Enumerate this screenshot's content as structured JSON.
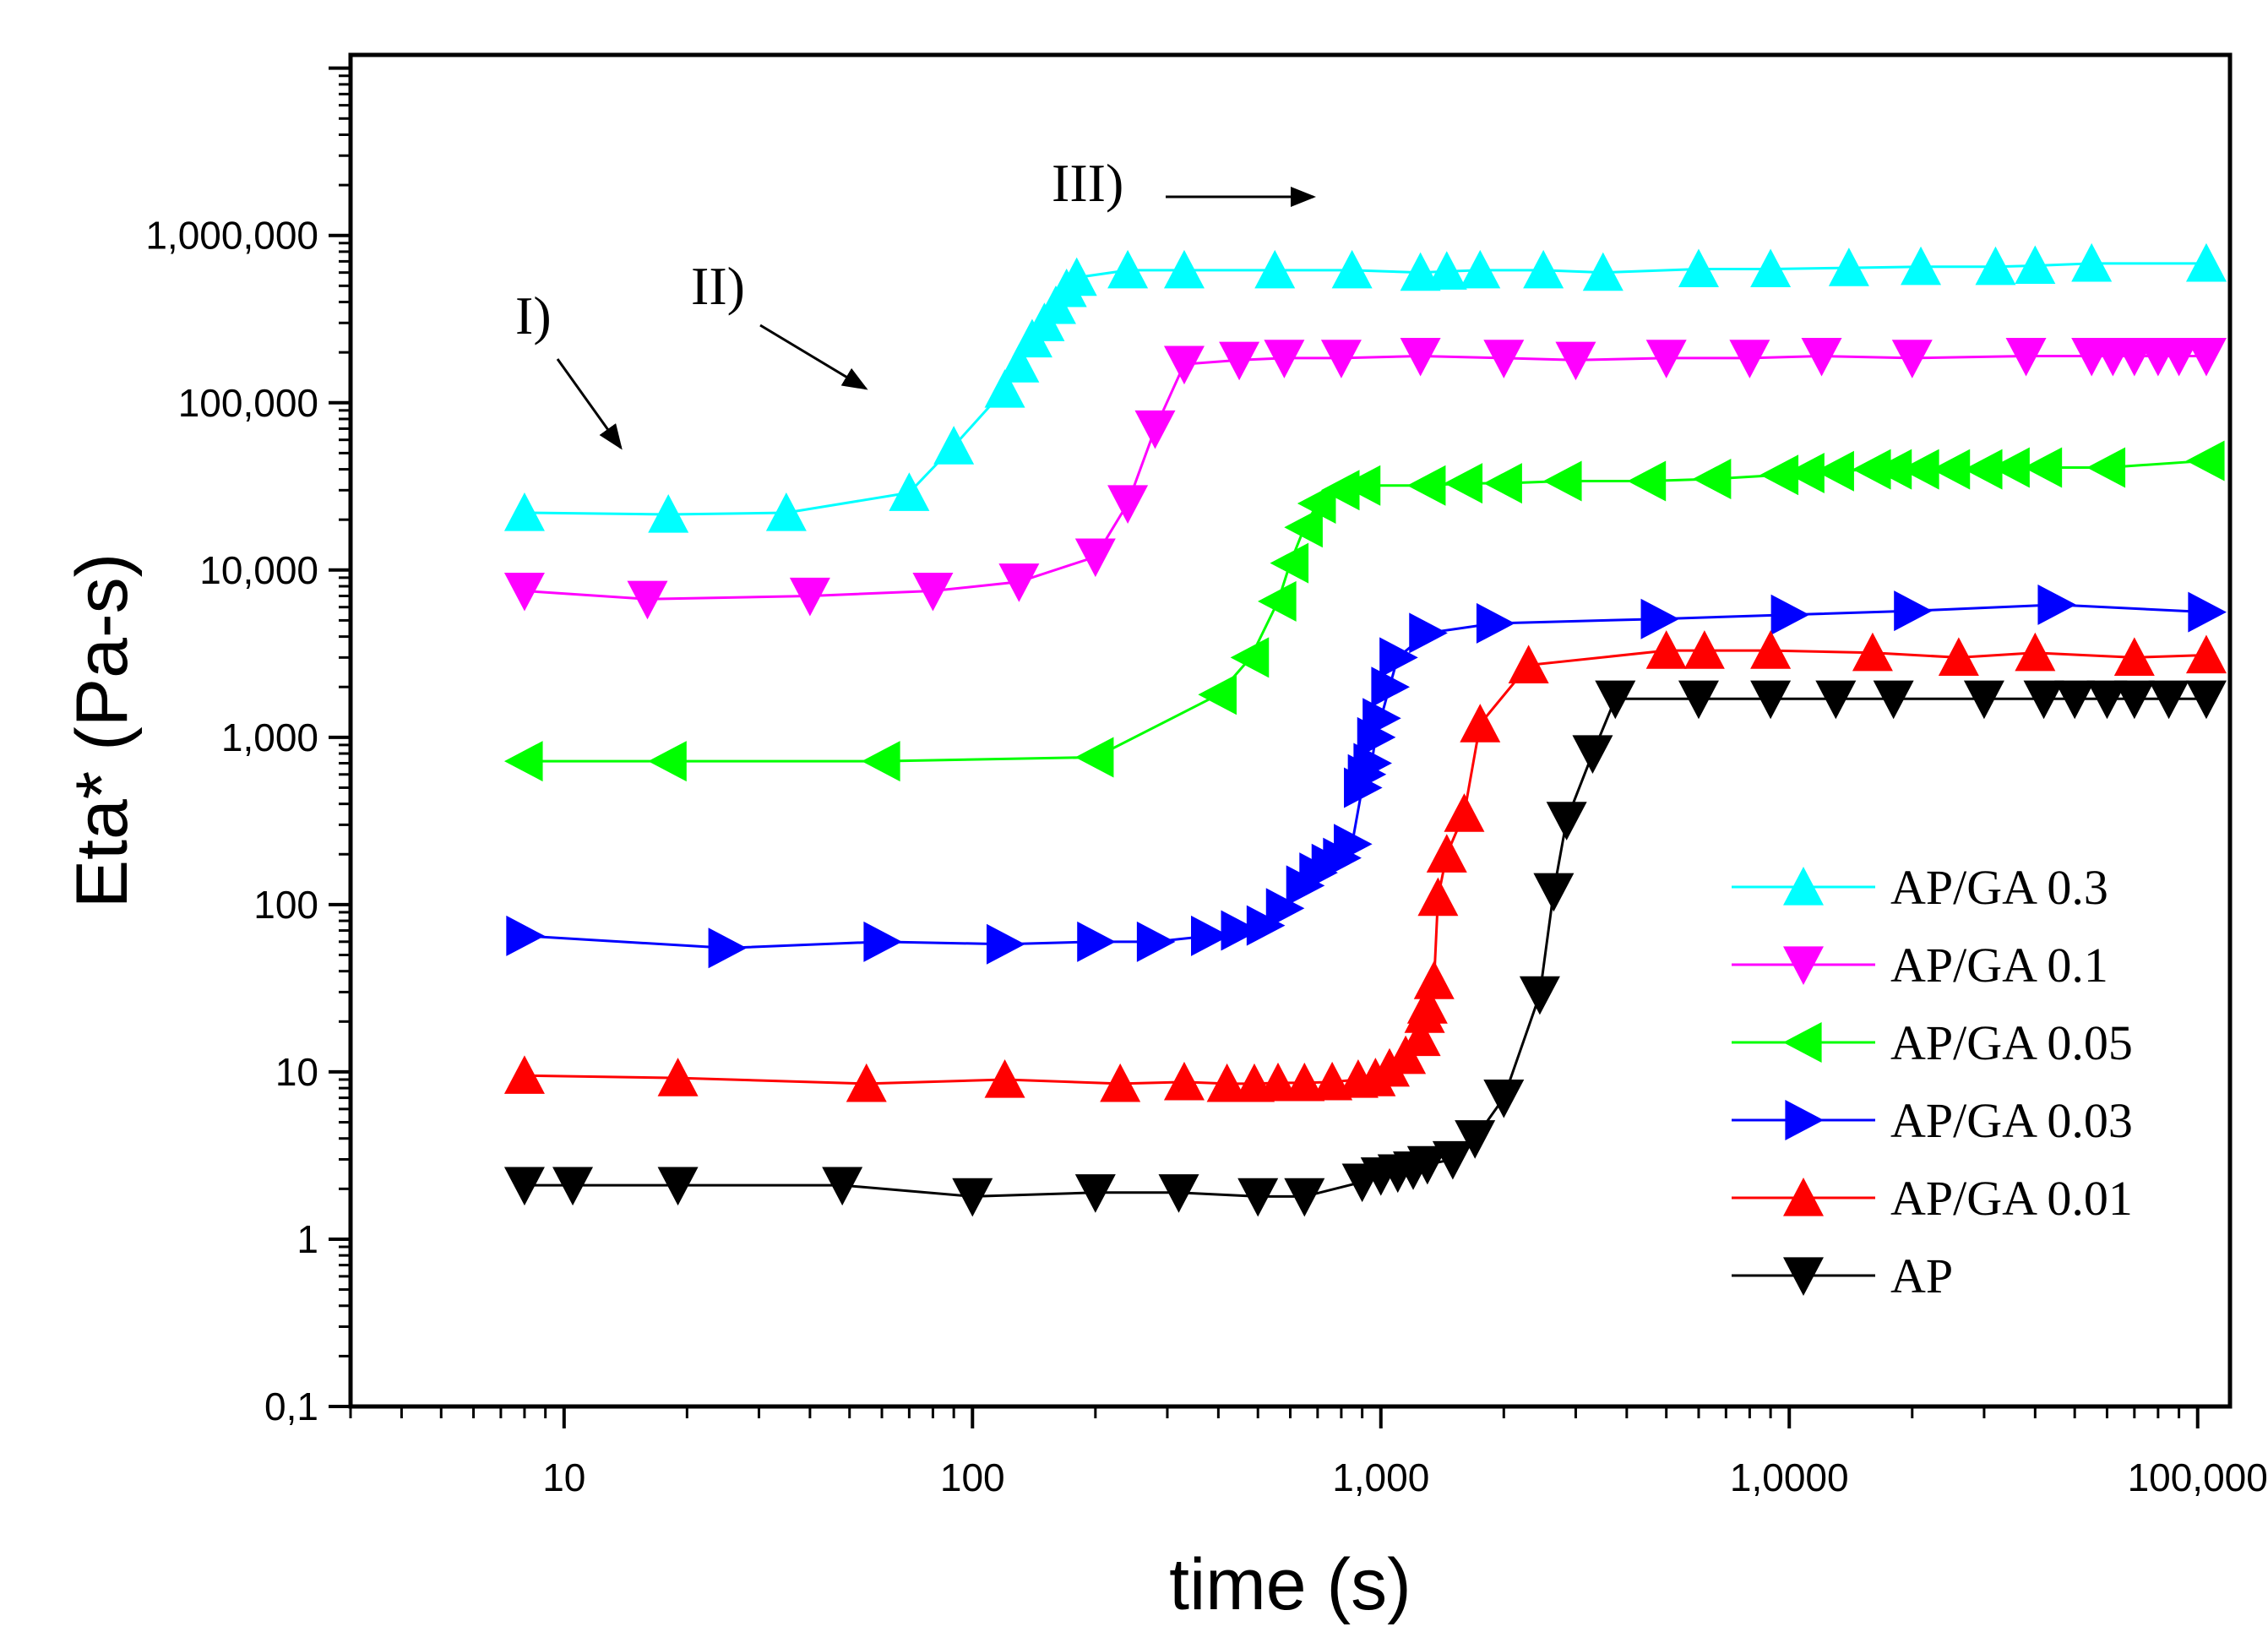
{
  "chart_data": {
    "type": "line",
    "title": "",
    "xlabel": "time (s)",
    "ylabel": "Eta* (Pa-s)",
    "xscale": "log",
    "yscale": "log",
    "xlim": [
      3,
      120000
    ],
    "ylim": [
      0.1,
      12000000
    ],
    "xticks": [
      10,
      100,
      1000,
      10000,
      100000
    ],
    "xtick_labels": [
      "10",
      "100",
      "1,000",
      "1,0000",
      "100,000"
    ],
    "yticks": [
      0.1,
      1,
      10,
      100,
      1000,
      10000,
      100000,
      1000000
    ],
    "ytick_labels": [
      "0,1",
      "1",
      "10",
      "100",
      "1,000",
      "10,000",
      "100,000",
      "1,000,000"
    ],
    "legend_position": "bottom-right",
    "annotations": [
      {
        "label": "I)",
        "arrow": "down-right"
      },
      {
        "label": "II)",
        "arrow": "down-right"
      },
      {
        "label": "III)",
        "arrow": "right"
      }
    ],
    "series": [
      {
        "name": "AP/GA 0.3",
        "color": "#00ffff",
        "marker": "triangle-up",
        "x": [
          8,
          18,
          35,
          70,
          90,
          120,
          130,
          140,
          150,
          160,
          170,
          180,
          240,
          330,
          550,
          850,
          1250,
          1450,
          1750,
          2500,
          3500,
          6000,
          9000,
          14000,
          21000,
          32000,
          40000,
          55000,
          105000
        ],
        "y": [
          22000,
          21500,
          22000,
          29000,
          55000,
          120000,
          170000,
          240000,
          300000,
          380000,
          480000,
          560000,
          620000,
          620000,
          620000,
          620000,
          600000,
          610000,
          620000,
          620000,
          600000,
          630000,
          630000,
          640000,
          650000,
          650000,
          660000,
          680000,
          680000
        ]
      },
      {
        "name": "AP/GA 0.1",
        "color": "#ff00ff",
        "marker": "triangle-down",
        "x": [
          8,
          16,
          40,
          80,
          130,
          200,
          240,
          280,
          330,
          450,
          580,
          800,
          1250,
          2000,
          3000,
          5000,
          8000,
          12000,
          20000,
          38000,
          55000,
          62000,
          70000,
          80000,
          90000,
          105000
        ],
        "y": [
          7500,
          6700,
          7000,
          7500,
          8500,
          12000,
          25000,
          70000,
          170000,
          180000,
          185000,
          185000,
          190000,
          185000,
          180000,
          185000,
          185000,
          190000,
          185000,
          190000,
          190000,
          190000,
          190000,
          190000,
          190000,
          190000
        ],
        "markers_in_legend": true
      },
      {
        "name": "AP/GA 0.05",
        "color": "#00ff00",
        "marker": "triangle-left",
        "x": [
          8,
          18,
          60,
          200,
          400,
          480,
          560,
          600,
          650,
          700,
          800,
          900,
          1300,
          1600,
          2000,
          2800,
          4500,
          6500,
          9500,
          11000,
          13000,
          16000,
          18000,
          21000,
          25000,
          30000,
          35000,
          42000,
          60000,
          105000
        ],
        "y": [
          720,
          720,
          720,
          760,
          1800,
          3000,
          6500,
          11000,
          18000,
          25000,
          30000,
          32000,
          32000,
          33000,
          33000,
          34000,
          34000,
          35000,
          37000,
          38000,
          39000,
          40000,
          40000,
          40000,
          40000,
          40000,
          41000,
          41000,
          41000,
          45000
        ]
      },
      {
        "name": "AP/GA 0.03",
        "color": "#0000ff",
        "marker": "triangle-right",
        "x": [
          8,
          25,
          60,
          120,
          200,
          280,
          380,
          450,
          520,
          580,
          650,
          700,
          750,
          800,
          850,
          900,
          920,
          950,
          970,
          1000,
          1050,
          1100,
          1300,
          1900,
          4800,
          10000,
          20000,
          45000,
          105000
        ],
        "y": [
          65,
          55,
          60,
          58,
          60,
          60,
          65,
          70,
          75,
          95,
          130,
          155,
          175,
          190,
          230,
          500,
          600,
          700,
          1000,
          1300,
          2000,
          3000,
          4200,
          4800,
          5100,
          5400,
          5700,
          6200,
          5600
        ]
      },
      {
        "name": "AP/GA 0.01",
        "color": "#ff0000",
        "marker": "triangle-up",
        "x": [
          8,
          19,
          55,
          120,
          230,
          330,
          420,
          490,
          560,
          650,
          760,
          880,
          970,
          1050,
          1150,
          1250,
          1280,
          1300,
          1350,
          1380,
          1450,
          1600,
          1750,
          2300,
          5000,
          6200,
          9000,
          16000,
          26000,
          40000,
          70000,
          105000
        ],
        "y": [
          9.5,
          9.2,
          8.5,
          9.0,
          8.5,
          8.7,
          8.5,
          8.5,
          8.6,
          8.6,
          8.7,
          9.0,
          9.2,
          10.5,
          12.5,
          16,
          22,
          25,
          35,
          110,
          200,
          350,
          1200,
          2700,
          3300,
          3300,
          3300,
          3200,
          3000,
          3200,
          3000,
          3100
        ]
      },
      {
        "name": "AP",
        "color": "#000000",
        "marker": "triangle-down",
        "x": [
          8,
          10.5,
          19,
          48,
          100,
          200,
          320,
          500,
          650,
          900,
          1000,
          1100,
          1200,
          1300,
          1500,
          1700,
          2000,
          2450,
          2650,
          2850,
          3300,
          3750,
          6000,
          9000,
          13000,
          18000,
          30000,
          42000,
          50000,
          60000,
          70000,
          85000,
          105000
        ],
        "y": [
          2.1,
          2.1,
          2.1,
          2.1,
          1.8,
          1.9,
          1.9,
          1.8,
          1.8,
          2.2,
          2.4,
          2.5,
          2.6,
          2.8,
          3.0,
          4.0,
          7.0,
          29,
          120,
          320,
          800,
          1700,
          1700,
          1700,
          1700,
          1700,
          1700,
          1700,
          1700,
          1700,
          1700,
          1700,
          1700
        ]
      }
    ]
  }
}
